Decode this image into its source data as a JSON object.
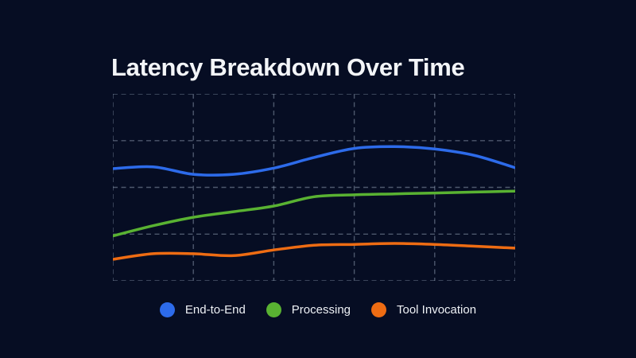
{
  "page": {
    "background_color": "#060d23",
    "title_color": "#f3f5f8"
  },
  "title": "Latency Breakdown Over Time",
  "legend": {
    "items": [
      {
        "label": "End-to-End",
        "color": "#2d6bea"
      },
      {
        "label": "Processing",
        "color": "#59b232"
      },
      {
        "label": "Tool Invocation",
        "color": "#ee6c13"
      }
    ]
  },
  "chart_data": {
    "type": "line",
    "title": "Latency Breakdown Over Time",
    "xlabel": "",
    "ylabel": "",
    "x": [
      0,
      1,
      2,
      3,
      4,
      5,
      6,
      7,
      8,
      9,
      10
    ],
    "xticklabels": "none",
    "yticklabels": "none",
    "ylim": [
      0,
      100
    ],
    "units": "relative (axes unlabeled; values estimated as % of plot height above bottom gridline)",
    "series": [
      {
        "name": "End-to-End",
        "color": "#2d6bea",
        "values": [
          60,
          61,
          57,
          57,
          60.3,
          66,
          70.8,
          71.8,
          70.5,
          67,
          60.5
        ]
      },
      {
        "name": "Processing",
        "color": "#59b232",
        "values": [
          24,
          29.5,
          34,
          37,
          40,
          45,
          46,
          46.5,
          47,
          47.5,
          48
        ]
      },
      {
        "name": "Tool Invocation",
        "color": "#ee6c13",
        "values": [
          11.5,
          14.5,
          14.5,
          13.5,
          16.5,
          19,
          19.5,
          20,
          19.5,
          18.5,
          17.5
        ]
      }
    ],
    "grid": {
      "show": true,
      "style": "dashed",
      "color": "rgba(148,163,184,0.5)",
      "vertical_lines": 6,
      "horizontal_lines": 5
    },
    "legend_position": "bottom",
    "line_width": 3.5
  }
}
